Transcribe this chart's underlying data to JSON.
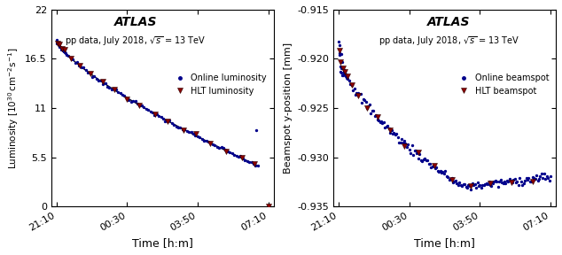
{
  "title": "ATLAS",
  "subtitle": "pp data, July 2018, $\\sqrt{s}$ = 13 TeV",
  "time_ticks_labels": [
    "21:10",
    "00:30",
    "03:50",
    "07:10"
  ],
  "time_ticks_minutes": [
    0,
    200,
    400,
    600
  ],
  "xlabel": "Time [h:m]",
  "lumi_ylabel": "Luminosity $[10^{30}\\,\\mathrm{cm}^{-2}\\mathrm{s}^{-1}]$",
  "lumi_ylim": [
    0,
    22
  ],
  "lumi_yticks": [
    0,
    5.5,
    11,
    16.5,
    22
  ],
  "lumi_ytick_labels": [
    "0",
    "5.5",
    "11",
    "16.5",
    "22"
  ],
  "lumi_online_color": "#00008B",
  "lumi_hlt_color": "#8B0000",
  "lumi_legend": [
    "Online luminosity",
    "HLT luminosity"
  ],
  "bs_ylabel": "Beamspot y-position [mm]",
  "bs_ylim": [
    -0.935,
    -0.915
  ],
  "bs_yticks": [
    -0.935,
    -0.93,
    -0.925,
    -0.92,
    -0.915
  ],
  "bs_ytick_labels": [
    "-0.935",
    "-0.930",
    "-0.925",
    "-0.920",
    "-0.915"
  ],
  "bs_online_color": "#00008B",
  "bs_hlt_color": "#8B0000",
  "bs_legend": [
    "Online beamspot",
    "HLT beamspot"
  ],
  "background_color": "#ffffff"
}
